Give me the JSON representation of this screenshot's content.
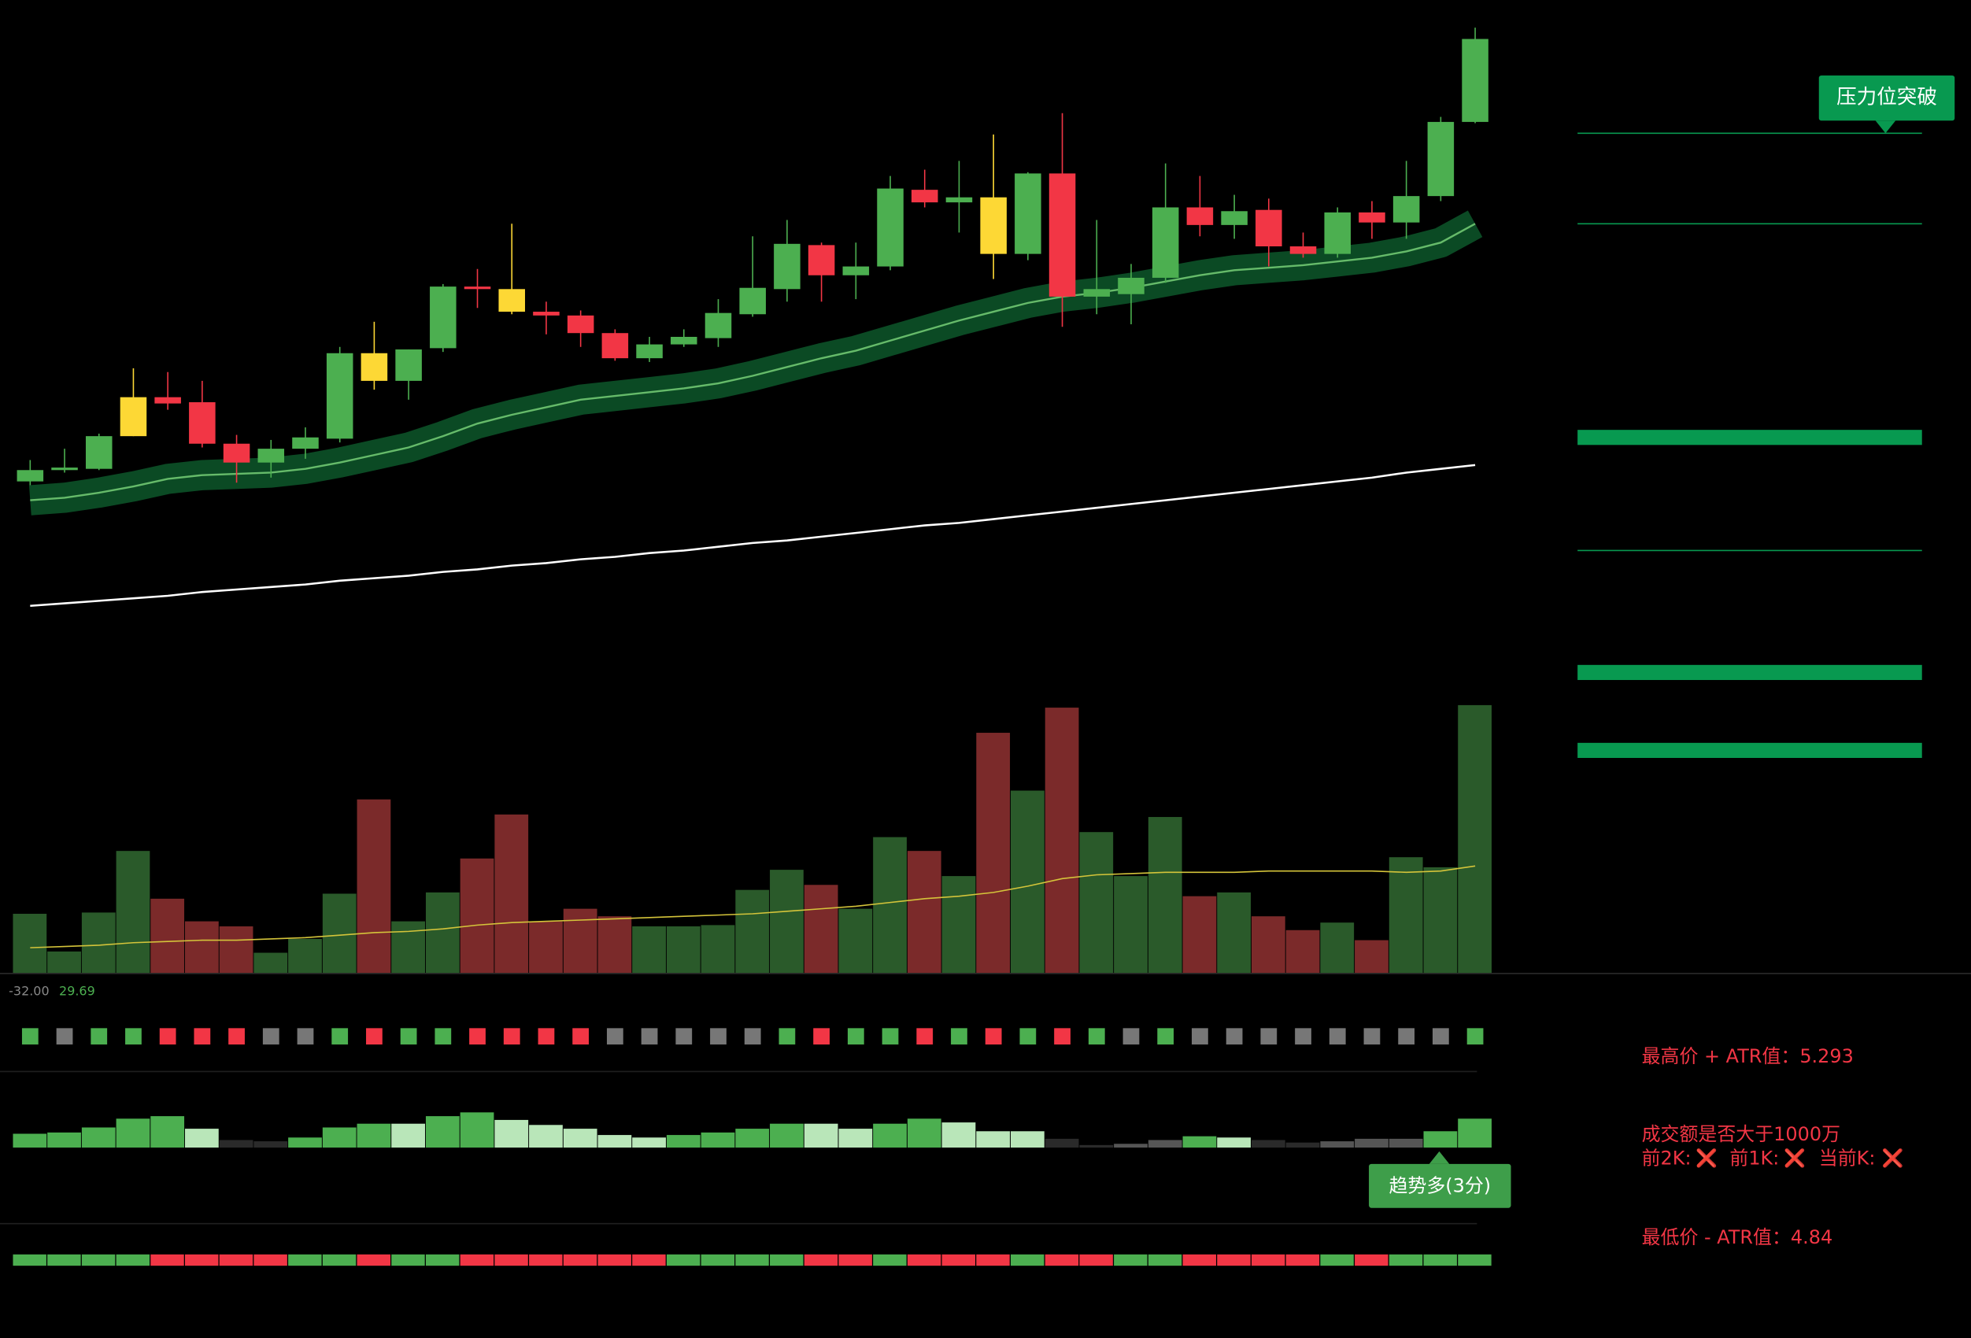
{
  "chart_data": {
    "type": "candlestick",
    "ylim": [
      -110,
      500
    ],
    "candles": {
      "open": [
        117,
        126,
        127,
        153,
        184,
        180,
        147,
        132,
        143,
        151,
        197,
        197,
        223,
        272,
        252,
        252,
        249,
        235,
        215,
        226,
        231,
        250,
        270,
        305,
        281,
        288,
        349,
        339,
        298,
        298,
        362,
        264,
        266,
        279,
        335,
        321,
        333,
        304,
        298,
        331,
        323,
        344,
        403
      ],
      "high": [
        134,
        143,
        155,
        207,
        204,
        197,
        154,
        150,
        160,
        224,
        244,
        222,
        274,
        286,
        322,
        260,
        253,
        238,
        232,
        238,
        262,
        312,
        325,
        307,
        307,
        360,
        365,
        372,
        393,
        363,
        410,
        325,
        290,
        370,
        360,
        345,
        342,
        315,
        335,
        340,
        372,
        407,
        478
      ],
      "low": [
        114,
        124,
        126,
        153,
        174,
        144,
        116,
        120,
        135,
        148,
        190,
        182,
        220,
        255,
        250,
        234,
        224,
        213,
        212,
        224,
        224,
        248,
        260,
        260,
        262,
        285,
        335,
        315,
        278,
        293,
        240,
        250,
        242,
        275,
        312,
        310,
        288,
        295,
        295,
        310,
        310,
        340,
        402
      ],
      "close": [
        126,
        128,
        153,
        184,
        179,
        147,
        132,
        143,
        152,
        219,
        219,
        222,
        272,
        270,
        270,
        249,
        235,
        215,
        226,
        232,
        251,
        271,
        306,
        281,
        288,
        350,
        339,
        343,
        343,
        362,
        264,
        270,
        279,
        335,
        321,
        332,
        304,
        298,
        331,
        323,
        344,
        403,
        469
      ],
      "colors": [
        "#4caf50",
        "#4caf50",
        "#4caf50",
        "#fdd835",
        "#f23645",
        "#f23645",
        "#f23645",
        "#4caf50",
        "#4caf50",
        "#4caf50",
        "#fdd835",
        "#4caf50",
        "#4caf50",
        "#f23645",
        "#fdd835",
        "#f23645",
        "#f23645",
        "#f23645",
        "#4caf50",
        "#4caf50",
        "#4caf50",
        "#4caf50",
        "#4caf50",
        "#f23645",
        "#4caf50",
        "#4caf50",
        "#f23645",
        "#4caf50",
        "#fdd835",
        "#4caf50",
        "#f23645",
        "#4caf50",
        "#4caf50",
        "#4caf50",
        "#f23645",
        "#4caf50",
        "#f23645",
        "#f23645",
        "#4caf50",
        "#f23645",
        "#4caf50",
        "#4caf50",
        "#4caf50"
      ]
    },
    "series": [
      {
        "color": "#66bb6a",
        "band_color": "#0b4a24",
        "values": [
          102,
          104,
          108,
          113,
          119,
          122,
          123,
          124,
          127,
          132,
          138,
          144,
          153,
          163,
          170,
          176,
          182,
          185,
          188,
          191,
          195,
          201,
          208,
          215,
          221,
          229,
          237,
          245,
          252,
          259,
          264,
          267,
          271,
          276,
          281,
          285,
          287,
          289,
          292,
          295,
          300,
          307,
          322
        ]
      },
      {
        "color": "#ffffff",
        "values": [
          18,
          20,
          22,
          24,
          26,
          29,
          31,
          33,
          35,
          38,
          40,
          42,
          45,
          47,
          50,
          52,
          55,
          57,
          60,
          62,
          65,
          68,
          70,
          73,
          76,
          79,
          82,
          84,
          87,
          90,
          93,
          96,
          99,
          102,
          105,
          108,
          111,
          114,
          117,
          120,
          124,
          127,
          130
        ]
      }
    ],
    "levels": [
      {
        "value": 394,
        "style": "thin"
      },
      {
        "value": 322,
        "style": "thin"
      },
      {
        "value": 152,
        "style": "thick"
      },
      {
        "value": 62,
        "style": "thin"
      },
      {
        "value": -35,
        "style": "thick"
      },
      {
        "value": -97,
        "style": "thick"
      }
    ],
    "level_color": "#089950",
    "level_label": "压力位突破",
    "volume": {
      "ylim": [
        0,
        220
      ],
      "values": [
        47,
        17,
        48,
        97,
        59,
        41,
        37,
        16,
        27,
        63,
        138,
        41,
        64,
        91,
        126,
        41,
        51,
        45,
        37,
        37,
        38,
        66,
        82,
        70,
        51,
        108,
        97,
        77,
        191,
        145,
        211,
        112,
        77,
        124,
        61,
        64,
        45,
        34,
        40,
        26,
        92,
        84,
        213
      ],
      "colors": [
        "#2a5a2a",
        "#2a5a2a",
        "#2a5a2a",
        "#2a5a2a",
        "#7b2a2a",
        "#7b2a2a",
        "#7b2a2a",
        "#2a5a2a",
        "#2a5a2a",
        "#2a5a2a",
        "#7b2a2a",
        "#2a5a2a",
        "#2a5a2a",
        "#7b2a2a",
        "#7b2a2a",
        "#7b2a2a",
        "#7b2a2a",
        "#7b2a2a",
        "#2a5a2a",
        "#2a5a2a",
        "#2a5a2a",
        "#2a5a2a",
        "#2a5a2a",
        "#7b2a2a",
        "#2a5a2a",
        "#2a5a2a",
        "#7b2a2a",
        "#2a5a2a",
        "#7b2a2a",
        "#2a5a2a",
        "#7b2a2a",
        "#2a5a2a",
        "#2a5a2a",
        "#2a5a2a",
        "#7b2a2a",
        "#2a5a2a",
        "#7b2a2a",
        "#7b2a2a",
        "#2a5a2a",
        "#7b2a2a",
        "#2a5a2a",
        "#2a5a2a",
        "#2a5a2a"
      ],
      "ma": {
        "color": "#d4c43a",
        "values": [
          20,
          21,
          22,
          24,
          25,
          26,
          26,
          27,
          28,
          30,
          32,
          33,
          35,
          38,
          40,
          41,
          42,
          43,
          44,
          45,
          46,
          47,
          49,
          51,
          53,
          56,
          59,
          61,
          64,
          69,
          75,
          78,
          79,
          80,
          80,
          80,
          81,
          81,
          81,
          81,
          80,
          81,
          85
        ]
      }
    },
    "indicator": {
      "readout": [
        {
          "value": -32,
          "label": "-32.00",
          "color": "#888888"
        },
        {
          "value": 29.69,
          "label": "29.69",
          "color": "#4caf50"
        }
      ],
      "signal_dots": [
        "#4caf50",
        "#777777",
        "#4caf50",
        "#4caf50",
        "#f23645",
        "#f23645",
        "#f23645",
        "#777777",
        "#777777",
        "#4caf50",
        "#f23645",
        "#4caf50",
        "#4caf50",
        "#f23645",
        "#f23645",
        "#f23645",
        "#f23645",
        "#777777",
        "#777777",
        "#777777",
        "#777777",
        "#777777",
        "#4caf50",
        "#f23645",
        "#4caf50",
        "#4caf50",
        "#f23645",
        "#4caf50",
        "#f23645",
        "#4caf50",
        "#f23645",
        "#4caf50",
        "#777777",
        "#4caf50",
        "#777777",
        "#777777",
        "#777777",
        "#777777",
        "#777777",
        "#777777",
        "#777777",
        "#777777",
        "#4caf50"
      ],
      "histogram": {
        "values": [
          11,
          12,
          16,
          23,
          25,
          15,
          6,
          5,
          8,
          16,
          19,
          19,
          25,
          28,
          22,
          18,
          15,
          10,
          8,
          10,
          12,
          15,
          19,
          19,
          15,
          19,
          23,
          20,
          13,
          13,
          7,
          2,
          3,
          6,
          9,
          8,
          6,
          4,
          5,
          7,
          7,
          13,
          23
        ],
        "colors": [
          "#4caf50",
          "#4caf50",
          "#4caf50",
          "#4caf50",
          "#4caf50",
          "#b9e6b9",
          "#2a2a2a",
          "#2a2a2a",
          "#4caf50",
          "#4caf50",
          "#4caf50",
          "#b9e6b9",
          "#4caf50",
          "#4caf50",
          "#b9e6b9",
          "#b9e6b9",
          "#b9e6b9",
          "#b9e6b9",
          "#b9e6b9",
          "#4caf50",
          "#4caf50",
          "#4caf50",
          "#4caf50",
          "#b9e6b9",
          "#b9e6b9",
          "#4caf50",
          "#4caf50",
          "#b9e6b9",
          "#b9e6b9",
          "#b9e6b9",
          "#2a2a2a",
          "#2a2a2a",
          "#555555",
          "#555555",
          "#4caf50",
          "#b9e6b9",
          "#2a2a2a",
          "#2a2a2a",
          "#555555",
          "#555555",
          "#555555",
          "#4caf50",
          "#4caf50"
        ]
      },
      "trend_label": "趋势多(3分)",
      "strip_colors": [
        "#4caf50",
        "#4caf50",
        "#4caf50",
        "#4caf50",
        "#f23645",
        "#f23645",
        "#f23645",
        "#f23645",
        "#4caf50",
        "#4caf50",
        "#f23645",
        "#4caf50",
        "#4caf50",
        "#f23645",
        "#f23645",
        "#f23645",
        "#f23645",
        "#f23645",
        "#f23645",
        "#4caf50",
        "#4caf50",
        "#4caf50",
        "#4caf50",
        "#f23645",
        "#f23645",
        "#4caf50",
        "#f23645",
        "#f23645",
        "#f23645",
        "#4caf50",
        "#f23645",
        "#f23645",
        "#4caf50",
        "#4caf50",
        "#f23645",
        "#f23645",
        "#f23645",
        "#f23645",
        "#4caf50",
        "#f23645",
        "#4caf50",
        "#4caf50",
        "#4caf50"
      ]
    }
  },
  "info_panel": {
    "high_atr": "最高价 + ATR值：5.293",
    "turnover_question": "成交额是否大于1000万",
    "checks": [
      {
        "label": "前2K:",
        "mark": "❌"
      },
      {
        "label": "前1K:",
        "mark": "❌"
      },
      {
        "label": "当前K:",
        "mark": "❌"
      }
    ],
    "low_atr": "最低价 - ATR值：4.84"
  }
}
